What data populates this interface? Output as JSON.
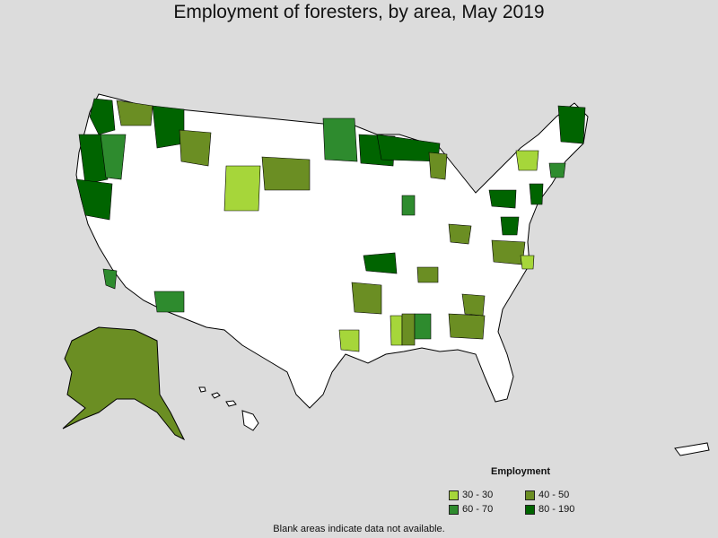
{
  "title": "Employment of foresters, by area, May 2019",
  "legend": {
    "title": "Employment",
    "items": [
      {
        "label": "30 - 30",
        "color": "#a6d63a"
      },
      {
        "label": "40 - 50",
        "color": "#6b8e23"
      },
      {
        "label": "60 - 70",
        "color": "#2e8b2e"
      },
      {
        "label": "80 - 190",
        "color": "#006400"
      }
    ]
  },
  "footnote": "Blank areas indicate data not available.",
  "colors": {
    "background": "#dcdcdc",
    "land": "#ffffff",
    "border": "#000000"
  }
}
